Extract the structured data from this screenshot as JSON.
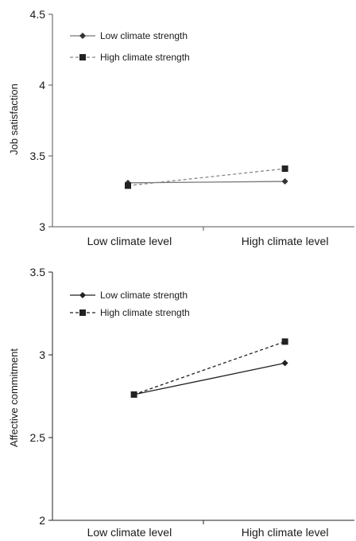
{
  "chart_data": [
    {
      "type": "line",
      "categories": [
        "Low climate level",
        "High climate level"
      ],
      "ylabel": "Job satisfaction",
      "xlabel": "",
      "ylim": [
        3,
        4.5
      ],
      "yticks": [
        "3",
        "3.5",
        "4",
        "4.5"
      ],
      "grid": false,
      "legend_position": "top-left",
      "series": [
        {
          "name": "Low climate strength",
          "values": [
            3.31,
            3.32
          ],
          "marker": "diamond",
          "line_style": "solid",
          "color": "#777777",
          "marker_color": "#333333"
        },
        {
          "name": "High climate strength",
          "values": [
            3.29,
            3.41
          ],
          "marker": "square",
          "line_style": "dashed",
          "color": "#888888",
          "marker_color": "#222222"
        }
      ]
    },
    {
      "type": "line",
      "categories": [
        "Low climate level",
        "High climate level"
      ],
      "ylabel": "Affective commitment",
      "xlabel": "",
      "ylim": [
        2,
        3.5
      ],
      "yticks": [
        "2",
        "2.5",
        "3",
        "3.5"
      ],
      "grid": false,
      "legend_position": "top-left",
      "series": [
        {
          "name": "Low climate strength",
          "values": [
            2.76,
            2.95
          ],
          "marker": "diamond",
          "line_style": "solid",
          "color": "#222222",
          "marker_color": "#222222"
        },
        {
          "name": "High climate strength",
          "values": [
            2.76,
            3.08
          ],
          "marker": "square",
          "line_style": "dashed",
          "color": "#222222",
          "marker_color": "#222222"
        }
      ]
    }
  ]
}
